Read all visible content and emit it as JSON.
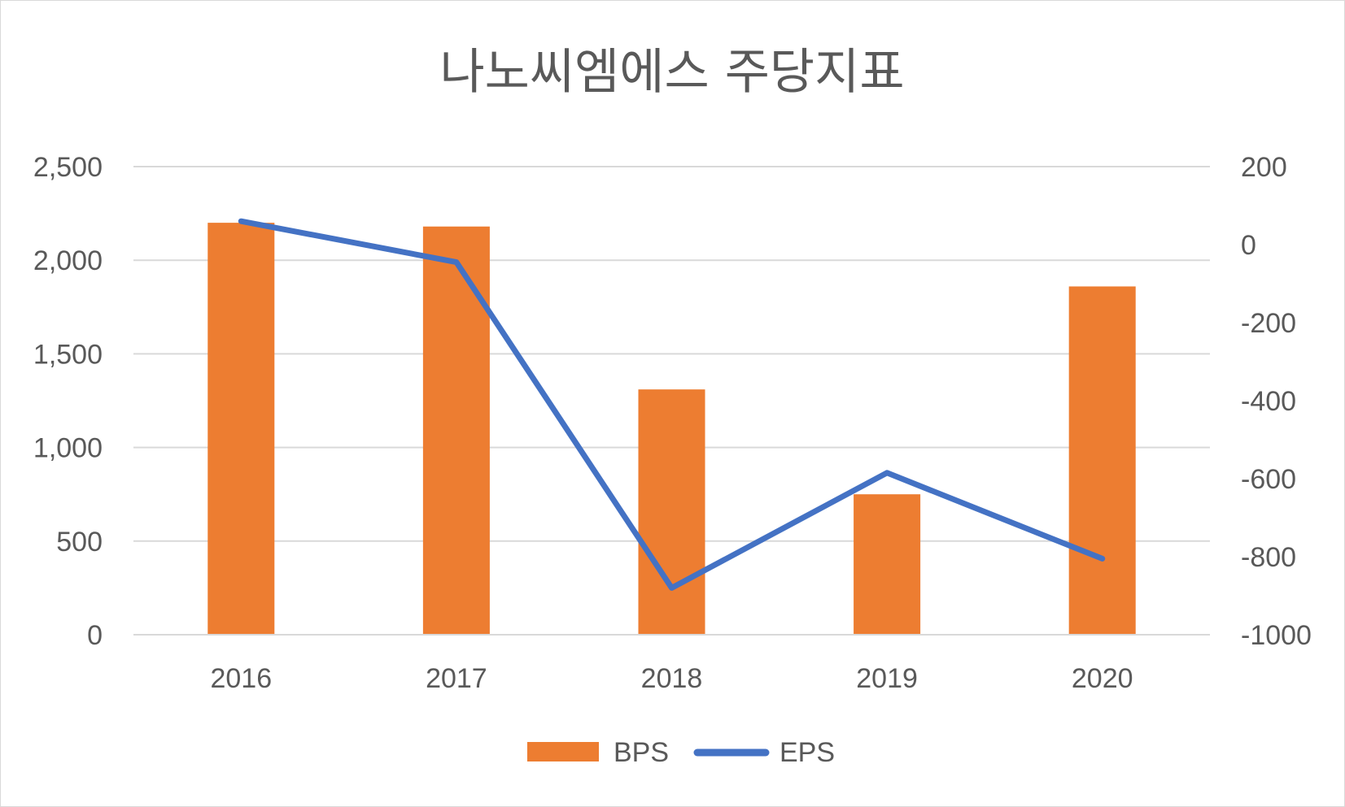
{
  "chart_data": {
    "type": "bar",
    "title": "나노씨엠에스 주당지표",
    "categories": [
      "2016",
      "2017",
      "2018",
      "2019",
      "2020"
    ],
    "series": [
      {
        "name": "BPS",
        "type": "bar",
        "axis": "left",
        "color": "#ED7D31",
        "values": [
          2200,
          2180,
          1310,
          750,
          1860
        ]
      },
      {
        "name": "EPS",
        "type": "line",
        "axis": "right",
        "color": "#4472C4",
        "values": [
          60,
          -45,
          -880,
          -585,
          -805
        ]
      }
    ],
    "y_left": {
      "ylim": [
        0,
        2500
      ],
      "ticks": [
        0,
        500,
        1000,
        1500,
        2000,
        2500
      ],
      "tick_labels": [
        "0",
        "500",
        "1,000",
        "1,500",
        "2,000",
        "2,500"
      ]
    },
    "y_right": {
      "ylim": [
        -1000,
        200
      ],
      "ticks": [
        -1000,
        -800,
        -600,
        -400,
        -200,
        0,
        200
      ],
      "tick_labels": [
        "-1000",
        "-800",
        "-600",
        "-400",
        "-200",
        "0",
        "200"
      ]
    },
    "grid": true,
    "gridline_color": "#d9d9d9",
    "legend_position": "bottom"
  }
}
